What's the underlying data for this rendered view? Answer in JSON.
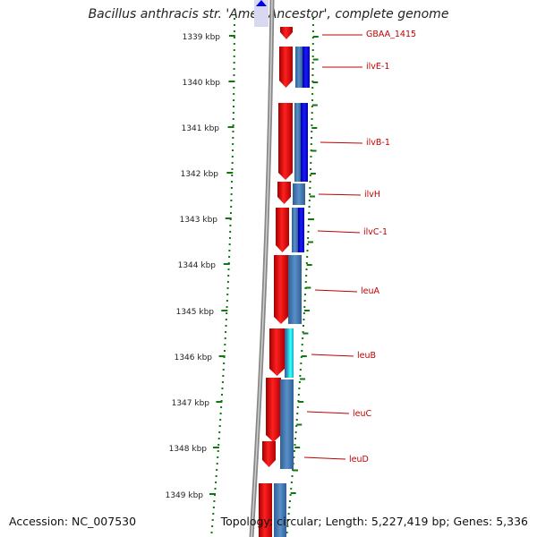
{
  "title": "Bacillus anthracis str. 'Ames Ancestor', complete genome",
  "footer": {
    "accession": "Accession: NC_007530",
    "summary": "Topology: circular; Length: 5,227,419 bp; Genes: 5,336"
  },
  "ruler": {
    "labels": [
      "1339 kbp",
      "1340 kbp",
      "1341 kbp",
      "1342 kbp",
      "1343 kbp",
      "1344 kbp",
      "1345 kbp",
      "1346 kbp",
      "1347 kbp",
      "1348 kbp",
      "1349 kbp"
    ]
  },
  "genes": [
    "GBAA_1415",
    "ilvE-1",
    "ilvB-1",
    "ilvH",
    "ilvC-1",
    "leuA",
    "leuB",
    "leuC",
    "leuD"
  ],
  "colors": {
    "forward_cds": "#ee0000",
    "reverse_cds": "#0000ee",
    "track_blue": "#4a7fb8",
    "highlight": "#20e0e0",
    "backbone": "#888888",
    "ticks": "#117711",
    "label": "#c00000"
  }
}
